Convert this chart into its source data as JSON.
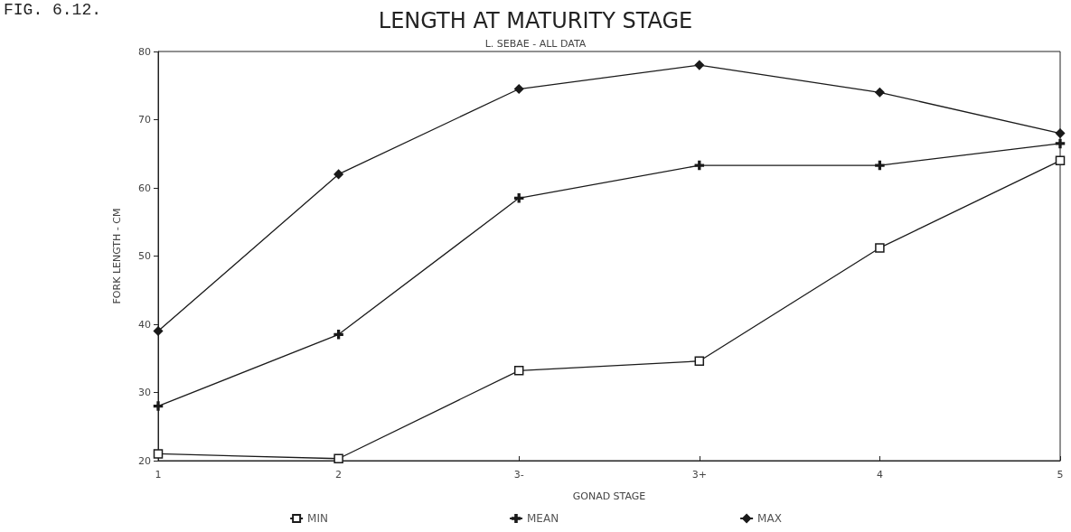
{
  "chart_data": {
    "type": "line",
    "title": "LENGTH AT MATURITY STAGE",
    "subtitle": "L. SEBAE - ALL DATA",
    "xlabel": "GONAD STAGE",
    "ylabel": "FORK LENGTH - CM",
    "annotations": [
      "FIG. 6.12."
    ],
    "categories": [
      "1",
      "2",
      "3-",
      "3+",
      "4",
      "5"
    ],
    "series": [
      {
        "name": "MIN",
        "color": "#1a1a1a",
        "marker": "square",
        "values": [
          21,
          20.3,
          33.2,
          34.6,
          51.2,
          64
        ]
      },
      {
        "name": "MEAN",
        "color": "#1a1a1a",
        "marker": "cross",
        "values": [
          28,
          38.5,
          58.5,
          63.3,
          63.3,
          66.5
        ]
      },
      {
        "name": "MAX",
        "color": "#1a1a1a",
        "marker": "diamond",
        "values": [
          39,
          62,
          74.5,
          78,
          74,
          68
        ]
      }
    ],
    "ylim": [
      20,
      80
    ],
    "yticks": [
      20,
      30,
      40,
      50,
      60,
      70,
      80
    ],
    "grid": false,
    "legend": "bottom"
  }
}
